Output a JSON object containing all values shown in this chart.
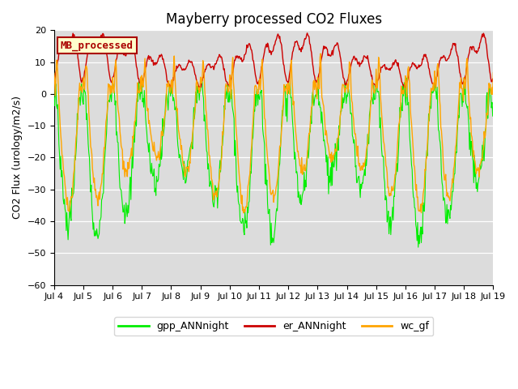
{
  "title": "Mayberry processed CO2 Fluxes",
  "ylabel": "CO2 Flux (urology/m2/s)",
  "ylim": [
    -60,
    20
  ],
  "yticks": [
    -60,
    -50,
    -40,
    -30,
    -20,
    -10,
    0,
    10,
    20
  ],
  "xtick_labels": [
    "Jul 4",
    "Jul 5",
    "Jul 6",
    "Jul 7",
    "Jul 8",
    "Jul 9",
    "Jul 10",
    "Jul 11",
    "Jul 12",
    "Jul 13",
    "Jul 14",
    "Jul 15",
    "Jul 16",
    "Jul 17",
    "Jul 18",
    "Jul 19"
  ],
  "legend_items": [
    "gpp_ANNnight",
    "er_ANNnight",
    "wc_gf"
  ],
  "legend_colors": [
    "#00FF00",
    "#CC0000",
    "#FFA500"
  ],
  "inset_label": "MB_processed",
  "inset_bg": "#FFFFCC",
  "inset_border": "#CC0000",
  "plot_bg": "#DCDCDC",
  "title_fontsize": 12,
  "axis_fontsize": 9,
  "tick_fontsize": 8
}
